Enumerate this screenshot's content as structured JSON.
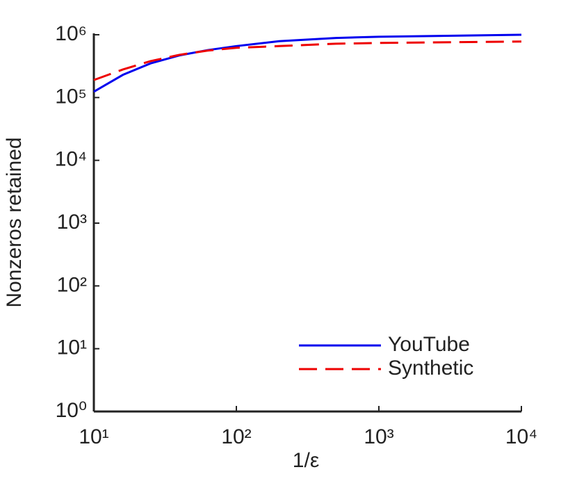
{
  "chart_data": {
    "type": "line",
    "xlabel": "1/ε",
    "ylabel": "Nonzeros retained",
    "x": [
      10,
      16,
      25,
      40,
      63,
      100,
      200,
      500,
      1000,
      10000
    ],
    "series": [
      {
        "name": "YouTube",
        "color": "#0000ee",
        "dash": "solid",
        "values": [
          124000,
          230000,
          350000,
          470000,
          570000,
          660000,
          790000,
          890000,
          930000,
          1000000
        ]
      },
      {
        "name": "Synthetic",
        "color": "#ee0000",
        "dash": "dashed",
        "values": [
          190000,
          280000,
          380000,
          480000,
          560000,
          620000,
          660000,
          720000,
          740000,
          780000
        ]
      }
    ],
    "xscale": "log",
    "yscale": "log",
    "xlim": [
      10,
      10000
    ],
    "ylim": [
      1,
      1000000
    ],
    "xticks": [
      {
        "value": 10,
        "label": "10¹"
      },
      {
        "value": 100,
        "label": "10²"
      },
      {
        "value": 1000,
        "label": "10³"
      },
      {
        "value": 10000,
        "label": "10⁴"
      }
    ],
    "yticks": [
      {
        "value": 1,
        "label": "10⁰"
      },
      {
        "value": 10,
        "label": "10¹"
      },
      {
        "value": 100,
        "label": "10²"
      },
      {
        "value": 1000,
        "label": "10³"
      },
      {
        "value": 10000,
        "label": "10⁴"
      },
      {
        "value": 100000,
        "label": "10⁵"
      },
      {
        "value": 1000000,
        "label": "10⁶"
      }
    ],
    "grid": false,
    "legend": "lower right"
  }
}
